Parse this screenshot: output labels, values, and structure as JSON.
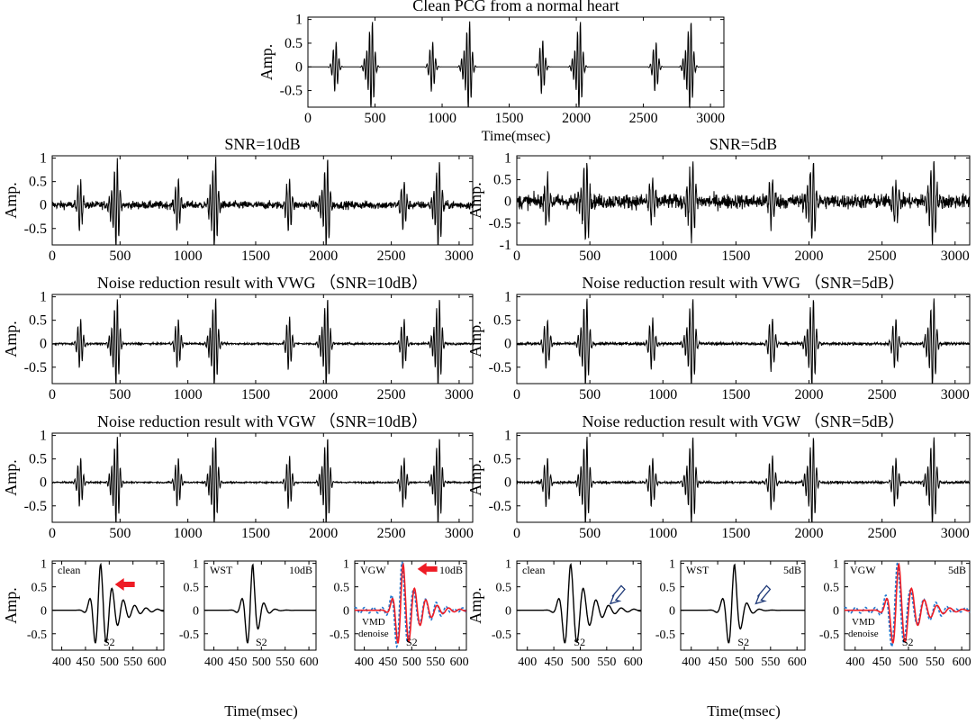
{
  "figure": {
    "xlabel_left": "Time(msec)",
    "xlabel_right": "Time(msec)"
  },
  "colors": {
    "signal": "#000000",
    "red": "#ee1c25",
    "blue": "#1f77d0",
    "arrow_red": "#ee1c25",
    "arrow_blue": "#1f3a78"
  },
  "chart_data": [
    {
      "type": "line",
      "title": "Clean  PCG from a normal heart",
      "xlabel": "Time(msec)",
      "ylabel": "Amp.",
      "xlim": [
        0,
        3100
      ],
      "ylim": [
        -0.85,
        1.05
      ],
      "xticks": [
        0,
        500,
        1000,
        1500,
        2000,
        2500,
        3000
      ],
      "yticks": [
        -0.5,
        0,
        0.5,
        1
      ],
      "ytick_labels": [
        "-0.5",
        "0",
        "0.5",
        "1"
      ],
      "events": [
        [
          205,
          0.55
        ],
        [
          475,
          1.0
        ],
        [
          925,
          0.55
        ],
        [
          1200,
          1.0
        ],
        [
          1745,
          0.6
        ],
        [
          2025,
          1.0
        ],
        [
          2590,
          0.55
        ],
        [
          2850,
          1.0
        ]
      ],
      "noise": 0.0
    },
    {
      "type": "line",
      "title": "SNR=10dB",
      "xlabel": "",
      "ylabel": "Amp.",
      "xlim": [
        0,
        3100
      ],
      "ylim": [
        -0.85,
        1.05
      ],
      "xticks": [
        0,
        500,
        1000,
        1500,
        2000,
        2500,
        3000
      ],
      "yticks": [
        -0.5,
        0,
        0.5,
        1
      ],
      "ytick_labels": [
        "-0.5",
        "0",
        "0.5",
        "1"
      ],
      "events": [
        [
          205,
          0.55
        ],
        [
          475,
          1.0
        ],
        [
          925,
          0.55
        ],
        [
          1200,
          1.0
        ],
        [
          1745,
          0.6
        ],
        [
          2025,
          1.0
        ],
        [
          2590,
          0.55
        ],
        [
          2850,
          1.0
        ]
      ],
      "noise": 0.08
    },
    {
      "type": "line",
      "title": "SNR=5dB",
      "xlabel": "",
      "ylabel": "Amp.",
      "xlim": [
        0,
        3100
      ],
      "ylim": [
        -1.0,
        1.05
      ],
      "xticks": [
        0,
        500,
        1000,
        1500,
        2000,
        2500,
        3000
      ],
      "yticks": [
        -1,
        -0.5,
        0,
        0.5,
        1
      ],
      "ytick_labels": [
        "-1",
        "-0.5",
        "0",
        "0.5",
        "1"
      ],
      "events": [
        [
          205,
          0.55
        ],
        [
          475,
          1.0
        ],
        [
          925,
          0.55
        ],
        [
          1200,
          1.0
        ],
        [
          1745,
          0.6
        ],
        [
          2025,
          1.0
        ],
        [
          2590,
          0.55
        ],
        [
          2850,
          1.0
        ]
      ],
      "noise": 0.16
    },
    {
      "type": "line",
      "title": "Noise reduction result with VWG （SNR=10dB）",
      "xlabel": "",
      "ylabel": "Amp.",
      "xlim": [
        0,
        3100
      ],
      "ylim": [
        -0.85,
        1.05
      ],
      "xticks": [
        0,
        500,
        1000,
        1500,
        2000,
        2500,
        3000
      ],
      "yticks": [
        -0.5,
        0,
        0.5,
        1
      ],
      "ytick_labels": [
        "-0.5",
        "0",
        "0.5",
        "1"
      ],
      "events": [
        [
          205,
          0.55
        ],
        [
          475,
          1.0
        ],
        [
          925,
          0.55
        ],
        [
          1200,
          1.0
        ],
        [
          1745,
          0.6
        ],
        [
          2025,
          1.0
        ],
        [
          2590,
          0.55
        ],
        [
          2850,
          1.0
        ]
      ],
      "noise": 0.02
    },
    {
      "type": "line",
      "title": "Noise reduction result with VWG （SNR=5dB）",
      "xlabel": "",
      "ylabel": "Amp.",
      "xlim": [
        0,
        3100
      ],
      "ylim": [
        -0.85,
        1.05
      ],
      "xticks": [
        0,
        500,
        1000,
        1500,
        2000,
        2500,
        3000
      ],
      "yticks": [
        -0.5,
        0,
        0.5,
        1
      ],
      "ytick_labels": [
        "-0.5",
        "0",
        "0.5",
        "1"
      ],
      "events": [
        [
          205,
          0.55
        ],
        [
          475,
          1.0
        ],
        [
          925,
          0.55
        ],
        [
          1200,
          1.0
        ],
        [
          1745,
          0.6
        ],
        [
          2025,
          1.0
        ],
        [
          2590,
          0.55
        ],
        [
          2850,
          1.0
        ]
      ],
      "noise": 0.03
    },
    {
      "type": "line",
      "title": "Noise reduction result with VGW （SNR=10dB）",
      "xlabel": "",
      "ylabel": "Amp.",
      "xlim": [
        0,
        3100
      ],
      "ylim": [
        -0.85,
        1.05
      ],
      "xticks": [
        0,
        500,
        1000,
        1500,
        2000,
        2500,
        3000
      ],
      "yticks": [
        -0.5,
        0,
        0.5,
        1
      ],
      "ytick_labels": [
        "-0.5",
        "0",
        "0.5",
        "1"
      ],
      "events": [
        [
          205,
          0.55
        ],
        [
          475,
          1.0
        ],
        [
          925,
          0.55
        ],
        [
          1200,
          1.0
        ],
        [
          1745,
          0.6
        ],
        [
          2025,
          1.0
        ],
        [
          2590,
          0.55
        ],
        [
          2850,
          1.0
        ]
      ],
      "noise": 0.015
    },
    {
      "type": "line",
      "title": "Noise reduction result with VGW （SNR=5dB）",
      "xlabel": "",
      "ylabel": "Amp.",
      "xlim": [
        0,
        3100
      ],
      "ylim": [
        -0.85,
        1.05
      ],
      "xticks": [
        0,
        500,
        1000,
        1500,
        2000,
        2500,
        3000
      ],
      "yticks": [
        -0.5,
        0,
        0.5,
        1
      ],
      "ytick_labels": [
        "-0.5",
        "0",
        "0.5",
        "1"
      ],
      "events": [
        [
          205,
          0.55
        ],
        [
          475,
          1.0
        ],
        [
          925,
          0.55
        ],
        [
          1200,
          1.0
        ],
        [
          1745,
          0.6
        ],
        [
          2025,
          1.0
        ],
        [
          2590,
          0.55
        ],
        [
          2850,
          1.0
        ]
      ],
      "noise": 0.025
    },
    {
      "type": "line",
      "title": "",
      "xlabel": "",
      "ylabel": "Amp.",
      "xlim": [
        380,
        615
      ],
      "ylim": [
        -0.85,
        1.05
      ],
      "xticks": [
        400,
        450,
        500,
        550,
        600
      ],
      "yticks": [
        -0.5,
        0,
        0.5,
        1
      ],
      "ytick_labels": [
        "-0.5",
        "0",
        "0.5",
        "1"
      ],
      "annotations": [
        "clean",
        "S2"
      ],
      "arrow": "red"
    },
    {
      "type": "line",
      "title": "",
      "xlabel": "",
      "ylabel": "",
      "xlim": [
        380,
        615
      ],
      "ylim": [
        -0.85,
        1.05
      ],
      "xticks": [
        400,
        450,
        500,
        550,
        600
      ],
      "yticks": [
        -0.5,
        0,
        0.5,
        1
      ],
      "ytick_labels": [
        "-0.5",
        "0",
        "0.5",
        "1"
      ],
      "annotations": [
        "WST",
        "10dB",
        "S2"
      ]
    },
    {
      "type": "line",
      "title": "",
      "xlabel": "",
      "ylabel": "",
      "xlim": [
        380,
        615
      ],
      "ylim": [
        -0.85,
        1.05
      ],
      "xticks": [
        400,
        450,
        500,
        550,
        600
      ],
      "yticks": [
        -0.5,
        0,
        0.5,
        1
      ],
      "ytick_labels": [
        "-0.5",
        "0",
        "0.5",
        "1"
      ],
      "annotations": [
        "VGW",
        "10dB",
        "VMD",
        "denoise",
        "S2"
      ],
      "series": [
        {
          "name": "VGW",
          "color": "#ee1c25"
        },
        {
          "name": "VMD denoise",
          "color": "#1f77d0",
          "style": "dashed"
        }
      ],
      "arrow": "red"
    },
    {
      "type": "line",
      "title": "",
      "xlabel": "",
      "ylabel": "Amp.",
      "xlim": [
        380,
        615
      ],
      "ylim": [
        -0.85,
        1.05
      ],
      "xticks": [
        400,
        450,
        500,
        550,
        600
      ],
      "yticks": [
        -0.5,
        0,
        0.5,
        1
      ],
      "ytick_labels": [
        "-0.5",
        "0",
        "0.5",
        "1"
      ],
      "annotations": [
        "clean",
        "S2"
      ],
      "arrow": "hollow"
    },
    {
      "type": "line",
      "title": "",
      "xlabel": "",
      "ylabel": "",
      "xlim": [
        380,
        615
      ],
      "ylim": [
        -0.85,
        1.05
      ],
      "xticks": [
        400,
        450,
        500,
        550,
        600
      ],
      "yticks": [
        -0.5,
        0,
        0.5,
        1
      ],
      "ytick_labels": [
        "-0.5",
        "0",
        "0.5",
        "1"
      ],
      "annotations": [
        "WST",
        "5dB",
        "S2"
      ],
      "arrow": "hollow"
    },
    {
      "type": "line",
      "title": "",
      "xlabel": "",
      "ylabel": "",
      "xlim": [
        380,
        615
      ],
      "ylim": [
        -0.85,
        1.05
      ],
      "xticks": [
        400,
        450,
        500,
        550,
        600
      ],
      "yticks": [
        -0.5,
        0,
        0.5,
        1
      ],
      "ytick_labels": [
        "-0.5",
        "0",
        "0.5",
        "1"
      ],
      "annotations": [
        "VGW",
        "5dB",
        "VMD",
        "denoise",
        "S2"
      ],
      "series": [
        {
          "name": "VGW",
          "color": "#ee1c25"
        },
        {
          "name": "VMD denoise",
          "color": "#1f77d0",
          "style": "dashed"
        }
      ]
    }
  ]
}
